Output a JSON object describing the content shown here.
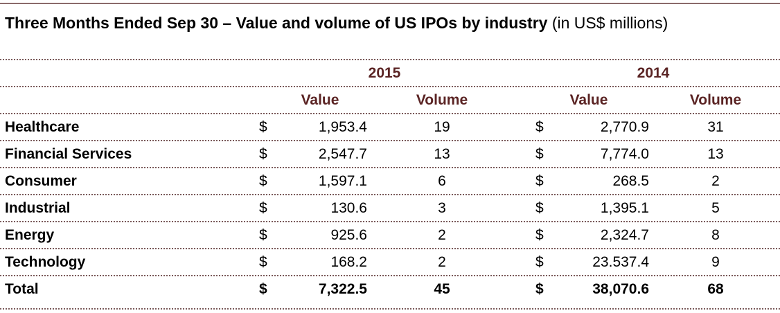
{
  "title": {
    "bold": "Three Months Ended Sep 30 – Value and volume of US IPOs by industry",
    "normal": " (in US$ millions)"
  },
  "years": [
    "2015",
    "2014"
  ],
  "columns": [
    "Value",
    "Volume",
    "Value",
    "Volume"
  ],
  "currency": "$",
  "rows": [
    {
      "industry": "Healthcare",
      "value_2015": "1,953.4",
      "volume_2015": "19",
      "value_2014": "2,770.9",
      "volume_2014": "31"
    },
    {
      "industry": "Financial Services",
      "value_2015": "2,547.7",
      "volume_2015": "13",
      "value_2014": "7,774.0",
      "volume_2014": "13"
    },
    {
      "industry": "Consumer",
      "value_2015": "1,597.1",
      "volume_2015": "6",
      "value_2014": "268.5",
      "volume_2014": "2"
    },
    {
      "industry": "Industrial",
      "value_2015": "130.6",
      "volume_2015": "3",
      "value_2014": "1,395.1",
      "volume_2014": "5"
    },
    {
      "industry": "Energy",
      "value_2015": "925.6",
      "volume_2015": "2",
      "value_2014": "2,324.7",
      "volume_2014": "8"
    },
    {
      "industry": "Technology",
      "value_2015": "168.2",
      "volume_2015": "2",
      "value_2014": "23.537.4",
      "volume_2014": "9"
    }
  ],
  "total": {
    "industry": "Total",
    "value_2015": "7,322.5",
    "volume_2015": "45",
    "value_2014": "38,070.6",
    "volume_2014": "68"
  }
}
